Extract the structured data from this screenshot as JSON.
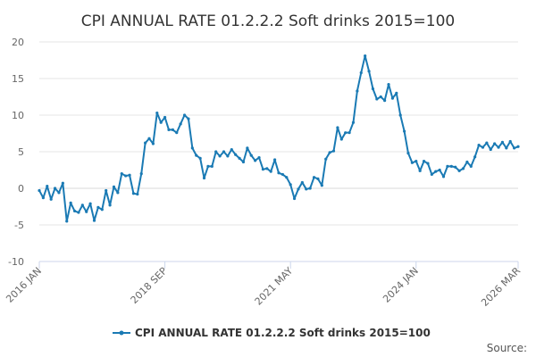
{
  "chart_data": {
    "type": "line",
    "title": "CPI ANNUAL RATE 01.2.2.2 Soft drinks 2015=100",
    "xlabel": "",
    "ylabel": "",
    "ylim": [
      -10,
      20
    ],
    "yticks": [
      -10,
      -5,
      0,
      5,
      10,
      15,
      20
    ],
    "x_tick_labels": [
      "2016 JAN",
      "2018 SEP",
      "2021 MAY",
      "2024 JAN",
      "2026 MAR"
    ],
    "x_tick_indices": [
      0,
      32,
      64,
      96,
      122
    ],
    "grid": true,
    "legend_position": "bottom",
    "series": [
      {
        "name": "CPI ANNUAL RATE 01.2.2.2 Soft drinks 2015=100",
        "color": "#1a7ab4",
        "values": [
          -0.3,
          -1.3,
          0.3,
          -1.5,
          0.0,
          -0.6,
          0.7,
          -4.5,
          -2.0,
          -3.1,
          -3.3,
          -2.3,
          -3.2,
          -2.1,
          -4.4,
          -2.6,
          -2.9,
          -0.3,
          -2.3,
          0.2,
          -0.6,
          2.0,
          1.7,
          1.8,
          -0.7,
          -0.8,
          2.0,
          6.2,
          6.8,
          6.1,
          10.3,
          9.0,
          9.7,
          8.0,
          8.0,
          7.6,
          8.8,
          10.0,
          9.5,
          5.5,
          4.5,
          4.1,
          1.4,
          3.0,
          3.0,
          5.0,
          4.4,
          5.0,
          4.4,
          5.3,
          4.6,
          4.1,
          3.6,
          5.5,
          4.5,
          3.8,
          4.2,
          2.6,
          2.7,
          2.3,
          3.9,
          2.1,
          1.9,
          1.5,
          0.5,
          -1.4,
          -0.1,
          0.8,
          -0.1,
          0.0,
          1.5,
          1.3,
          0.4,
          4.0,
          4.9,
          5.1,
          8.3,
          6.7,
          7.6,
          7.6,
          9.0,
          13.3,
          15.8,
          18.1,
          16.0,
          13.6,
          12.2,
          12.5,
          12.0,
          14.2,
          12.3,
          13.0,
          10.0,
          7.8,
          4.8,
          3.5,
          3.7,
          2.4,
          3.7,
          3.4,
          1.9,
          2.3,
          2.5,
          1.6,
          3.0,
          3.0,
          2.9,
          2.4,
          2.7,
          3.6,
          3.0,
          4.3,
          5.9,
          5.6,
          6.2,
          5.3,
          6.1,
          5.6,
          6.3,
          5.5,
          6.4,
          5.5,
          5.7
        ]
      }
    ]
  },
  "footer": {
    "source_label": "Source:"
  }
}
